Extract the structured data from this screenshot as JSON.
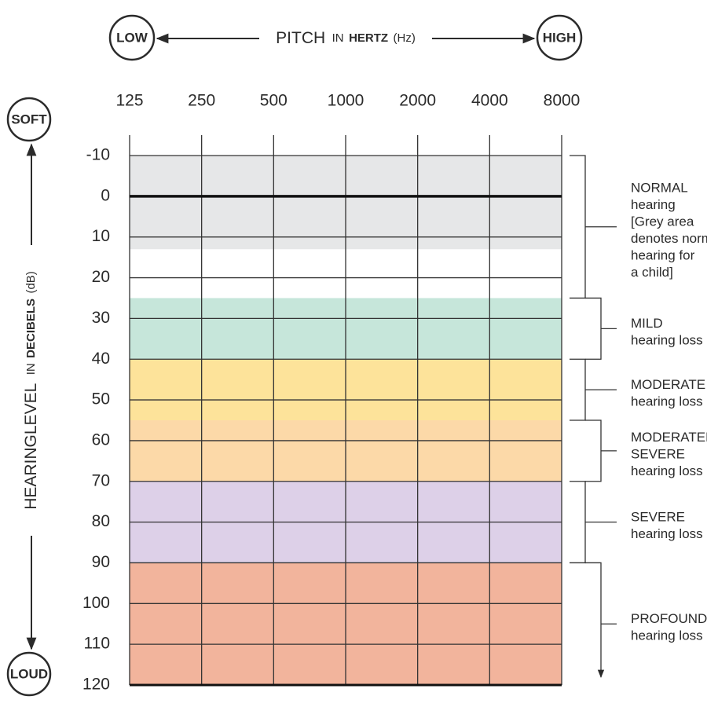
{
  "chart_data": {
    "type": "audiogram",
    "x_title": {
      "main": "PITCH",
      "small": "IN",
      "bold": "HERTZ",
      "unit": "(Hz)"
    },
    "y_title": {
      "main": "HEARINGLEVEL",
      "small": "IN",
      "bold": "DECIBELS",
      "unit": "(dB)"
    },
    "x_ends": [
      "LOW",
      "HIGH"
    ],
    "y_ends": [
      "SOFT",
      "LOUD"
    ],
    "categories": [
      "125",
      "250",
      "500",
      "1000",
      "2000",
      "4000",
      "8000"
    ],
    "ylim": [
      -10,
      120
    ],
    "y_inverted": true,
    "yticks": [
      -10,
      0,
      10,
      20,
      30,
      40,
      50,
      60,
      70,
      80,
      90,
      100,
      110,
      120
    ],
    "grid": true,
    "reference_line": 0,
    "fills": [
      {
        "from": -10,
        "to": 13,
        "color": "#e6e7e8"
      },
      {
        "from": 25,
        "to": 40,
        "color": "#c6e6da"
      },
      {
        "from": 40,
        "to": 55,
        "color": "#fde39a"
      },
      {
        "from": 55,
        "to": 70,
        "color": "#fcd9a8"
      },
      {
        "from": 70,
        "to": 90,
        "color": "#ddd0e8"
      },
      {
        "from": 90,
        "to": 120,
        "color": "#f2b49c"
      }
    ],
    "labels": [
      {
        "from": -10,
        "to": 25,
        "title": [
          "NORMAL"
        ],
        "lines": [
          "hearing",
          "[Grey area",
          "denotes normal",
          "hearing for",
          "a child]"
        ]
      },
      {
        "from": 25,
        "to": 40,
        "title": [
          "MILD"
        ],
        "lines": [
          "hearing loss"
        ]
      },
      {
        "from": 40,
        "to": 55,
        "title": [
          "MODERATE"
        ],
        "lines": [
          "hearing loss"
        ]
      },
      {
        "from": 55,
        "to": 70,
        "title": [
          "MODERATELY",
          "SEVERE"
        ],
        "lines": [
          "hearing loss"
        ]
      },
      {
        "from": 70,
        "to": 90,
        "title": [
          "SEVERE"
        ],
        "lines": [
          "hearing loss"
        ]
      },
      {
        "from": 90,
        "to": 120,
        "title": [
          "PROFOUND"
        ],
        "lines": [
          "hearing loss"
        ],
        "arrow": true
      }
    ]
  }
}
